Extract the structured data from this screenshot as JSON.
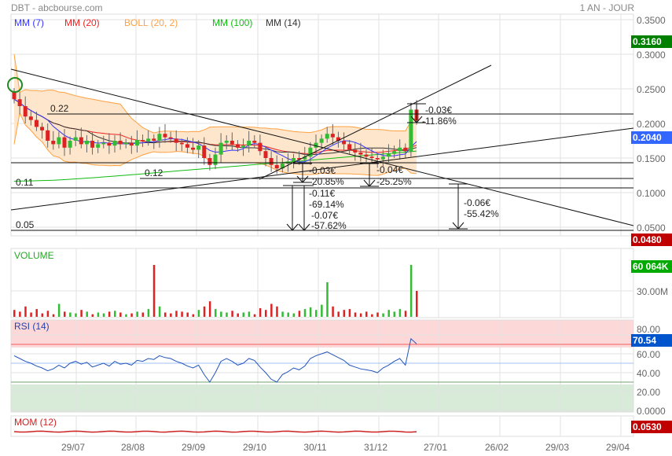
{
  "header": {
    "title": "DBT - abcbourse.com",
    "period": "1 AN - JOUR"
  },
  "legend": [
    {
      "label": "MM (7)",
      "color": "#3333ff"
    },
    {
      "label": "MM (20)",
      "color": "#ee2222"
    },
    {
      "label": "BOLL (20, 2)",
      "color": "#ffa040"
    },
    {
      "label": "MM (100)",
      "color": "#11bb11"
    },
    {
      "label": "MM (14)",
      "color": "#333333"
    }
  ],
  "tags": {
    "high": "0.3160",
    "last": "0.2040",
    "low": "0.0480",
    "volume": "60 064K",
    "rsi": "70.54",
    "mom": "0.0530"
  },
  "colors": {
    "high": "#008000",
    "last": "#3366ff",
    "low": "#c00000",
    "volume": "#00aa00",
    "rsi": "#0055cc",
    "mom": "#c00000"
  },
  "chart_data": {
    "type": "candlestick",
    "price_axis": {
      "ticks": [
        "0.3500",
        "0.3000",
        "0.2500",
        "0.2000",
        "0.1500",
        "0.1000",
        "0.0500"
      ],
      "ylim": [
        0.045,
        0.355
      ]
    },
    "x_ticks": [
      "29/07",
      "28/08",
      "29/09",
      "29/10",
      "30/11",
      "31/12",
      "27/01",
      "26/02",
      "29/03",
      "29/04"
    ],
    "closes": [
      0.235,
      0.225,
      0.21,
      0.205,
      0.195,
      0.19,
      0.175,
      0.17,
      0.18,
      0.165,
      0.175,
      0.18,
      0.17,
      0.175,
      0.165,
      0.17,
      0.172,
      0.168,
      0.175,
      0.17,
      0.172,
      0.168,
      0.176,
      0.174,
      0.178,
      0.175,
      0.185,
      0.18,
      0.178,
      0.172,
      0.17,
      0.165,
      0.162,
      0.168,
      0.15,
      0.14,
      0.155,
      0.172,
      0.175,
      0.17,
      0.165,
      0.168,
      0.175,
      0.172,
      0.16,
      0.15,
      0.14,
      0.135,
      0.142,
      0.145,
      0.15,
      0.148,
      0.152,
      0.165,
      0.172,
      0.178,
      0.185,
      0.18,
      0.175,
      0.17,
      0.162,
      0.158,
      0.155,
      0.152,
      0.15,
      0.148,
      0.152,
      0.156,
      0.16,
      0.165,
      0.16,
      0.22,
      0.204
    ],
    "volume_millions": [
      8,
      6,
      12,
      5,
      9,
      4,
      7,
      3,
      15,
      6,
      5,
      4,
      8,
      6,
      3,
      5,
      4,
      6,
      7,
      5,
      3,
      4,
      6,
      5,
      9,
      60,
      12,
      5,
      4,
      7,
      6,
      5,
      3,
      8,
      12,
      18,
      9,
      6,
      5,
      7,
      4,
      5,
      6,
      3,
      10,
      8,
      15,
      12,
      6,
      5,
      4,
      7,
      9,
      11,
      8,
      14,
      40,
      12,
      6,
      8,
      9,
      5,
      4,
      6,
      3,
      5,
      4,
      8,
      6,
      9,
      7,
      60.064,
      30
    ],
    "volume_axis": [
      "30.00M"
    ],
    "rsi": [
      58,
      55,
      52,
      50,
      47,
      45,
      42,
      44,
      48,
      45,
      50,
      52,
      49,
      51,
      46,
      48,
      50,
      47,
      52,
      49,
      50,
      48,
      53,
      52,
      55,
      54,
      58,
      56,
      55,
      52,
      50,
      47,
      45,
      48,
      38,
      30,
      40,
      52,
      55,
      52,
      48,
      50,
      55,
      53,
      46,
      40,
      33,
      30,
      38,
      41,
      45,
      43,
      47,
      55,
      58,
      60,
      62,
      59,
      56,
      53,
      48,
      46,
      44,
      43,
      42,
      40,
      45,
      48,
      52,
      55,
      48,
      76,
      70.54
    ],
    "rsi_axis": [
      "80.00",
      "60.00",
      "40.00",
      "20.00",
      "0.0000"
    ],
    "rsi_levels": {
      "overbought": 70,
      "mid": 50,
      "oversold": 30
    },
    "levels": [
      {
        "label": "0.22",
        "value": 0.22
      },
      {
        "label": "0.12",
        "value": 0.12
      },
      {
        "label": "0.11",
        "value": 0.11
      },
      {
        "label": "0.05",
        "value": 0.05
      }
    ],
    "annotations": [
      {
        "l1": "-0.03€",
        "l2": "-11.86%"
      },
      {
        "l1": "-0.03€",
        "l2": "-20.85%"
      },
      {
        "l1": "-0.11€",
        "l2": "-69.14%"
      },
      {
        "l1": "-0.07€",
        "l2": "-57.62%"
      },
      {
        "l1": "-0.04€",
        "l2": "-25.25%"
      },
      {
        "l1": "-0.06€",
        "l2": "-55.42%"
      }
    ],
    "panels": {
      "volume": "VOLUME",
      "rsi": "RSI (14)",
      "mom": "MOM (12)"
    }
  }
}
